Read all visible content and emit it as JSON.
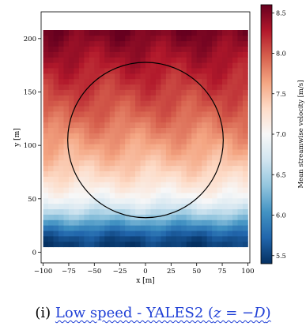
{
  "chart_data": {
    "type": "heatmap",
    "xlabel": "x [m]",
    "ylabel": "y [m]",
    "x_ticks": [
      -100,
      -75,
      -50,
      -25,
      0,
      25,
      50,
      75,
      100
    ],
    "y_ticks": [
      0,
      50,
      100,
      150,
      200
    ],
    "xlim": [
      -102,
      102
    ],
    "ylim": [
      -10,
      225
    ],
    "field_extent": {
      "x": [
        -100,
        100
      ],
      "y": [
        5,
        208
      ]
    },
    "colorbar": {
      "label": "Mean streamwise velocity [m/s]",
      "ticks": [
        5.5,
        6.0,
        6.5,
        7.0,
        7.5,
        8.0,
        8.5
      ],
      "range": [
        5.4,
        8.6
      ],
      "colormap": "RdBu_r"
    },
    "velocity_profile": [
      {
        "y": 5,
        "u": 5.45
      },
      {
        "y": 15,
        "u": 5.6
      },
      {
        "y": 25,
        "u": 6.0
      },
      {
        "y": 35,
        "u": 6.45
      },
      {
        "y": 45,
        "u": 6.8
      },
      {
        "y": 55,
        "u": 7.05
      },
      {
        "y": 70,
        "u": 7.3
      },
      {
        "y": 90,
        "u": 7.55
      },
      {
        "y": 110,
        "u": 7.75
      },
      {
        "y": 130,
        "u": 7.95
      },
      {
        "y": 150,
        "u": 8.1
      },
      {
        "y": 170,
        "u": 8.25
      },
      {
        "y": 190,
        "u": 8.4
      },
      {
        "y": 208,
        "u": 8.55
      }
    ],
    "rotor_circle": {
      "center_x": 0,
      "center_y": 105,
      "radius": 76
    }
  },
  "caption": {
    "prefix": "(i) ",
    "link_text": "Low speed - YALES2 (",
    "math": "z = −D",
    "close": ")"
  }
}
